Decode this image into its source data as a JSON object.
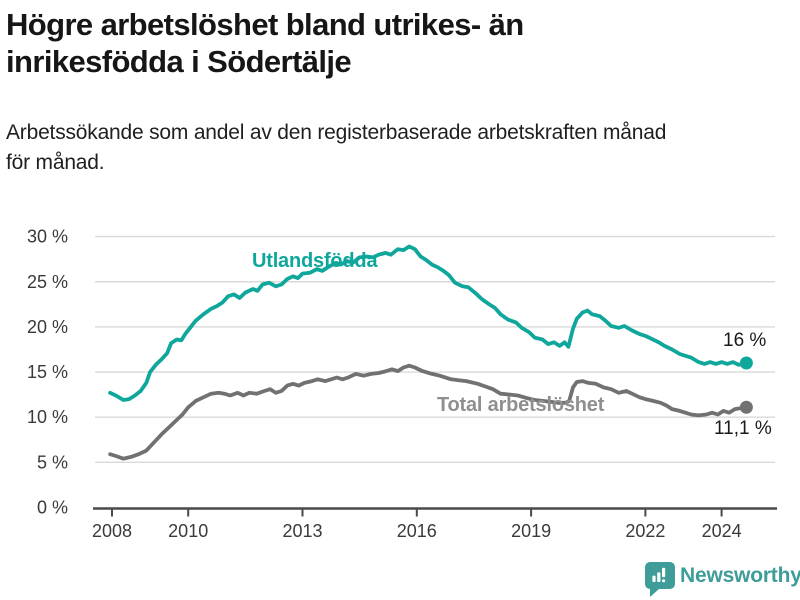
{
  "header": {
    "title_line1": "Högre arbetslöshet bland utrikes- än",
    "title_line2": "inrikesfödda i Södertälje",
    "subtitle_line1": "Arbetssökande som andel av den registerbaserade arbetskraften månad",
    "subtitle_line2": "för månad."
  },
  "colors": {
    "accent_teal": "#0FA69C",
    "line_gray": "#717171",
    "label_gray": "#8f8f8f",
    "grid": "#d9d9d9",
    "axis": "#4a4a4a",
    "text": "#1a1a1a",
    "brand_teal": "#3E9C99"
  },
  "chart_data": {
    "type": "line",
    "title": "Högre arbetslöshet bland utrikes- än inrikesfödda i Södertälje",
    "subtitle": "Arbetssökande som andel av den registerbaserade arbetskraften månad för månad.",
    "xlabel": "",
    "ylabel": "",
    "unit": "%",
    "grid": true,
    "legend_position": "inline-labels",
    "ylim": [
      0,
      31
    ],
    "xlim": [
      2007.9,
      2025.4
    ],
    "y_ticks": [
      {
        "value": 0,
        "label": "0 %"
      },
      {
        "value": 5,
        "label": "5 %"
      },
      {
        "value": 10,
        "label": "10 %"
      },
      {
        "value": 15,
        "label": "15 %"
      },
      {
        "value": 20,
        "label": "20 %"
      },
      {
        "value": 25,
        "label": "25 %"
      },
      {
        "value": 30,
        "label": "30 %"
      }
    ],
    "x_ticks": [
      {
        "year": 2008,
        "label": "2008"
      },
      {
        "year": 2010,
        "label": "2010"
      },
      {
        "year": 2013,
        "label": "2013"
      },
      {
        "year": 2016,
        "label": "2016"
      },
      {
        "year": 2019,
        "label": "2019"
      },
      {
        "year": 2022,
        "label": "2022"
      },
      {
        "year": 2024,
        "label": "2024"
      }
    ],
    "series": [
      {
        "name": "Utlandsfödda",
        "color": "#0FA69C",
        "end_value": 16,
        "end_label": "16 %",
        "points": [
          [
            2007.95,
            12.7
          ],
          [
            2008.1,
            12.4
          ],
          [
            2008.3,
            11.9
          ],
          [
            2008.45,
            12.0
          ],
          [
            2008.6,
            12.4
          ],
          [
            2008.75,
            12.9
          ],
          [
            2008.9,
            13.8
          ],
          [
            2009.0,
            15.0
          ],
          [
            2009.15,
            15.8
          ],
          [
            2009.3,
            16.4
          ],
          [
            2009.45,
            17.1
          ],
          [
            2009.55,
            18.2
          ],
          [
            2009.7,
            18.6
          ],
          [
            2009.82,
            18.5
          ],
          [
            2009.92,
            19.2
          ],
          [
            2010.05,
            19.9
          ],
          [
            2010.2,
            20.7
          ],
          [
            2010.4,
            21.4
          ],
          [
            2010.6,
            22.0
          ],
          [
            2010.75,
            22.3
          ],
          [
            2010.9,
            22.7
          ],
          [
            2011.05,
            23.4
          ],
          [
            2011.2,
            23.6
          ],
          [
            2011.35,
            23.2
          ],
          [
            2011.5,
            23.8
          ],
          [
            2011.7,
            24.2
          ],
          [
            2011.82,
            24.0
          ],
          [
            2011.95,
            24.7
          ],
          [
            2012.12,
            24.9
          ],
          [
            2012.3,
            24.5
          ],
          [
            2012.45,
            24.7
          ],
          [
            2012.6,
            25.3
          ],
          [
            2012.75,
            25.6
          ],
          [
            2012.88,
            25.4
          ],
          [
            2013.0,
            25.9
          ],
          [
            2013.2,
            26.0
          ],
          [
            2013.38,
            26.4
          ],
          [
            2013.52,
            26.2
          ],
          [
            2013.7,
            26.7
          ],
          [
            2013.88,
            27.1
          ],
          [
            2014.0,
            26.9
          ],
          [
            2014.18,
            27.3
          ],
          [
            2014.32,
            27.1
          ],
          [
            2014.5,
            27.7
          ],
          [
            2014.68,
            27.8
          ],
          [
            2014.85,
            27.7
          ],
          [
            2015.0,
            28.0
          ],
          [
            2015.18,
            28.2
          ],
          [
            2015.32,
            28.0
          ],
          [
            2015.5,
            28.6
          ],
          [
            2015.65,
            28.5
          ],
          [
            2015.8,
            28.9
          ],
          [
            2015.95,
            28.6
          ],
          [
            2016.1,
            27.8
          ],
          [
            2016.25,
            27.4
          ],
          [
            2016.4,
            26.9
          ],
          [
            2016.55,
            26.6
          ],
          [
            2016.7,
            26.2
          ],
          [
            2016.85,
            25.7
          ],
          [
            2017.0,
            24.9
          ],
          [
            2017.2,
            24.5
          ],
          [
            2017.35,
            24.4
          ],
          [
            2017.55,
            23.7
          ],
          [
            2017.7,
            23.1
          ],
          [
            2017.9,
            22.5
          ],
          [
            2018.05,
            22.1
          ],
          [
            2018.2,
            21.4
          ],
          [
            2018.4,
            20.8
          ],
          [
            2018.6,
            20.5
          ],
          [
            2018.75,
            19.9
          ],
          [
            2018.95,
            19.4
          ],
          [
            2019.1,
            18.8
          ],
          [
            2019.3,
            18.6
          ],
          [
            2019.45,
            18.1
          ],
          [
            2019.6,
            18.3
          ],
          [
            2019.75,
            17.9
          ],
          [
            2019.88,
            18.3
          ],
          [
            2019.98,
            17.8
          ],
          [
            2020.1,
            19.8
          ],
          [
            2020.2,
            20.9
          ],
          [
            2020.35,
            21.6
          ],
          [
            2020.48,
            21.8
          ],
          [
            2020.6,
            21.4
          ],
          [
            2020.8,
            21.2
          ],
          [
            2020.95,
            20.7
          ],
          [
            2021.1,
            20.1
          ],
          [
            2021.3,
            19.9
          ],
          [
            2021.45,
            20.1
          ],
          [
            2021.65,
            19.6
          ],
          [
            2021.85,
            19.2
          ],
          [
            2022.0,
            19.0
          ],
          [
            2022.2,
            18.6
          ],
          [
            2022.35,
            18.3
          ],
          [
            2022.5,
            17.9
          ],
          [
            2022.7,
            17.5
          ],
          [
            2022.9,
            17.0
          ],
          [
            2023.05,
            16.8
          ],
          [
            2023.2,
            16.6
          ],
          [
            2023.4,
            16.1
          ],
          [
            2023.55,
            15.9
          ],
          [
            2023.7,
            16.1
          ],
          [
            2023.85,
            15.9
          ],
          [
            2024.0,
            16.1
          ],
          [
            2024.15,
            15.9
          ],
          [
            2024.3,
            16.1
          ],
          [
            2024.45,
            15.8
          ],
          [
            2024.65,
            16.0
          ]
        ]
      },
      {
        "name": "Total arbetslöshet",
        "color": "#717171",
        "end_value": 11.1,
        "end_label": "11,1 %",
        "points": [
          [
            2007.95,
            5.9
          ],
          [
            2008.1,
            5.7
          ],
          [
            2008.3,
            5.4
          ],
          [
            2008.5,
            5.6
          ],
          [
            2008.7,
            5.9
          ],
          [
            2008.9,
            6.3
          ],
          [
            2009.1,
            7.2
          ],
          [
            2009.3,
            8.1
          ],
          [
            2009.5,
            8.9
          ],
          [
            2009.7,
            9.7
          ],
          [
            2009.85,
            10.3
          ],
          [
            2010.0,
            11.1
          ],
          [
            2010.2,
            11.8
          ],
          [
            2010.4,
            12.2
          ],
          [
            2010.6,
            12.6
          ],
          [
            2010.8,
            12.7
          ],
          [
            2010.95,
            12.6
          ],
          [
            2011.1,
            12.4
          ],
          [
            2011.3,
            12.7
          ],
          [
            2011.45,
            12.4
          ],
          [
            2011.6,
            12.7
          ],
          [
            2011.8,
            12.6
          ],
          [
            2012.0,
            12.9
          ],
          [
            2012.15,
            13.1
          ],
          [
            2012.3,
            12.7
          ],
          [
            2012.45,
            12.9
          ],
          [
            2012.6,
            13.5
          ],
          [
            2012.75,
            13.7
          ],
          [
            2012.9,
            13.5
          ],
          [
            2013.05,
            13.8
          ],
          [
            2013.25,
            14.0
          ],
          [
            2013.4,
            14.2
          ],
          [
            2013.6,
            14.0
          ],
          [
            2013.75,
            14.2
          ],
          [
            2013.9,
            14.4
          ],
          [
            2014.05,
            14.2
          ],
          [
            2014.2,
            14.4
          ],
          [
            2014.4,
            14.8
          ],
          [
            2014.6,
            14.6
          ],
          [
            2014.8,
            14.8
          ],
          [
            2015.0,
            14.9
          ],
          [
            2015.2,
            15.1
          ],
          [
            2015.35,
            15.3
          ],
          [
            2015.5,
            15.1
          ],
          [
            2015.65,
            15.5
          ],
          [
            2015.8,
            15.7
          ],
          [
            2015.95,
            15.5
          ],
          [
            2016.15,
            15.1
          ],
          [
            2016.4,
            14.8
          ],
          [
            2016.6,
            14.6
          ],
          [
            2016.9,
            14.2
          ],
          [
            2017.1,
            14.1
          ],
          [
            2017.3,
            14.0
          ],
          [
            2017.6,
            13.7
          ],
          [
            2017.8,
            13.4
          ],
          [
            2018.0,
            13.1
          ],
          [
            2018.2,
            12.6
          ],
          [
            2018.45,
            12.5
          ],
          [
            2018.65,
            12.4
          ],
          [
            2018.9,
            12.1
          ],
          [
            2019.1,
            11.9
          ],
          [
            2019.3,
            11.8
          ],
          [
            2019.5,
            11.7
          ],
          [
            2019.7,
            11.6
          ],
          [
            2019.9,
            11.6
          ],
          [
            2020.0,
            11.8
          ],
          [
            2020.1,
            13.3
          ],
          [
            2020.2,
            13.9
          ],
          [
            2020.35,
            14.0
          ],
          [
            2020.5,
            13.8
          ],
          [
            2020.7,
            13.7
          ],
          [
            2020.9,
            13.3
          ],
          [
            2021.1,
            13.1
          ],
          [
            2021.3,
            12.7
          ],
          [
            2021.5,
            12.9
          ],
          [
            2021.65,
            12.6
          ],
          [
            2021.85,
            12.2
          ],
          [
            2022.0,
            12.0
          ],
          [
            2022.2,
            11.8
          ],
          [
            2022.4,
            11.6
          ],
          [
            2022.55,
            11.3
          ],
          [
            2022.7,
            10.9
          ],
          [
            2022.9,
            10.7
          ],
          [
            2023.05,
            10.5
          ],
          [
            2023.2,
            10.3
          ],
          [
            2023.4,
            10.2
          ],
          [
            2023.6,
            10.3
          ],
          [
            2023.75,
            10.5
          ],
          [
            2023.9,
            10.3
          ],
          [
            2024.05,
            10.7
          ],
          [
            2024.2,
            10.5
          ],
          [
            2024.35,
            10.9
          ],
          [
            2024.65,
            11.1
          ]
        ]
      }
    ]
  },
  "footer": {
    "brand": "Newsworthy"
  }
}
